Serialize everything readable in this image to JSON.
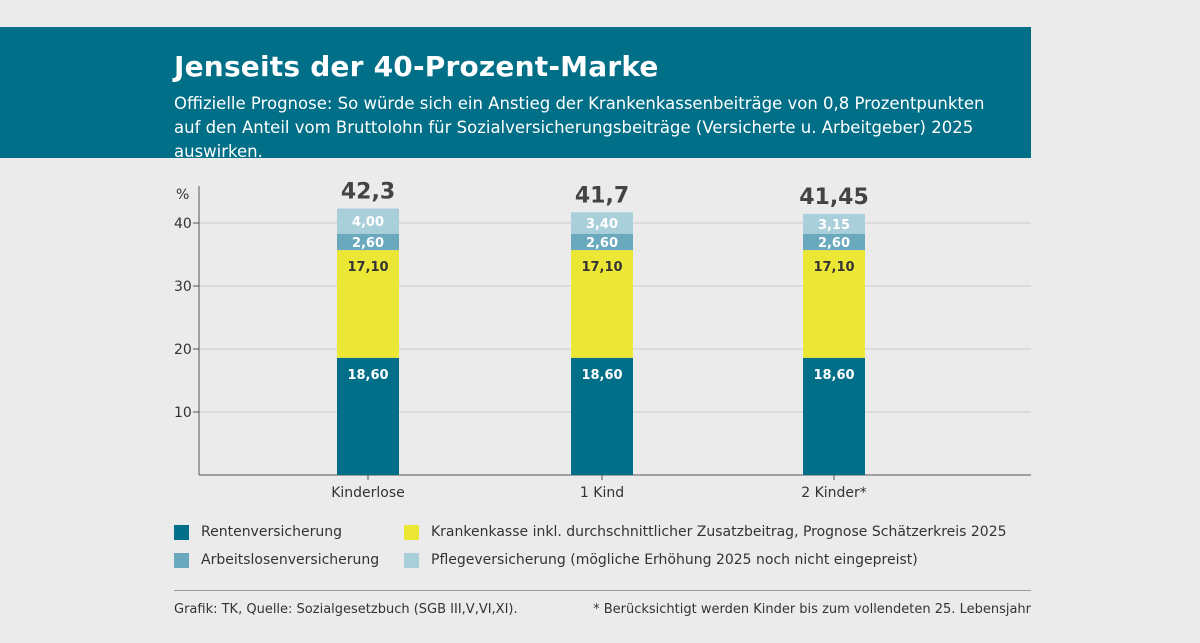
{
  "header": {
    "title": "Jenseits der 40-Prozent-Marke",
    "subtitle": "Offizielle Prognose: So würde sich ein Anstieg der Krankenkassenbeiträge von 0,8 Prozentpunkten auf den Anteil vom Bruttolohn für Sozialversicherungsbeiträge (Versicherte u. Arbeitgeber) 2025 auswirken."
  },
  "chart_data": {
    "type": "bar",
    "stacked": true,
    "ylabel": "%",
    "ylim": [
      0,
      45
    ],
    "yticks": [
      10,
      20,
      30,
      40
    ],
    "categories": [
      "Kinderlose",
      "1 Kind",
      "2 Kinder*"
    ],
    "totals": [
      "42,3",
      "41,7",
      "41,45"
    ],
    "series": [
      {
        "name": "Rentenversicherung",
        "color": "#006f87",
        "label_color": "#ffffff",
        "values": [
          18.6,
          18.6,
          18.6
        ],
        "labels": [
          "18,60",
          "18,60",
          "18,60"
        ]
      },
      {
        "name": "Krankenkasse inkl. durchschnittlicher Zusatzbeitrag, Prognose Schätzerkreis 2025",
        "color": "#ece635",
        "label_color": "#333333",
        "values": [
          17.1,
          17.1,
          17.1
        ],
        "labels": [
          "17,10",
          "17,10",
          "17,10"
        ]
      },
      {
        "name": "Arbeitslosenversicherung",
        "color": "#6aa9bd",
        "label_color": "#ffffff",
        "values": [
          2.6,
          2.6,
          2.6
        ],
        "labels": [
          "2,60",
          "2,60",
          "2,60"
        ]
      },
      {
        "name": "Pflegeversicherung (mögliche Erhöhung 2025 noch nicht eingepreist)",
        "color": "#a9cfda",
        "label_color": "#ffffff",
        "values": [
          4.0,
          3.4,
          3.15
        ],
        "labels": [
          "4,00",
          "3,40",
          "3,15"
        ]
      }
    ],
    "grid": "horizontal",
    "legend_position": "bottom"
  },
  "footer": {
    "source": "Grafik: TK, Quelle: Sozialgesetzbuch (SGB III,V,VI,XI).",
    "note": "* Berücksichtigt werden Kinder bis zum vollendeten 25. Lebensjahr"
  }
}
